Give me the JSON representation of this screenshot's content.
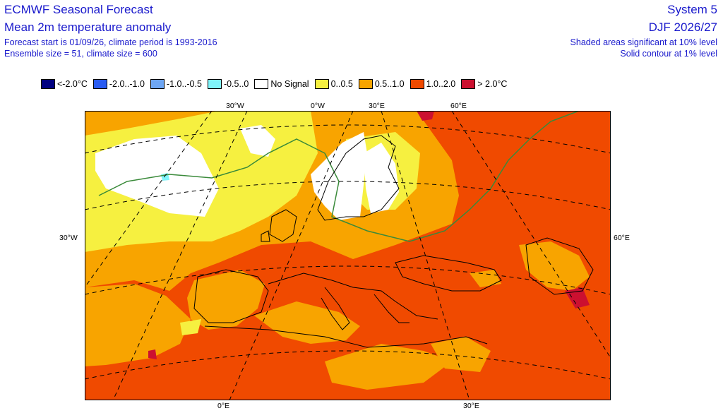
{
  "header": {
    "title_left": "ECMWF Seasonal Forecast",
    "subtitle_left": "Mean 2m temperature anomaly",
    "info_line1": "Forecast start is 01/09/26, climate period is 1993-2016",
    "info_line2": "Ensemble size = 51, climate size = 600",
    "title_right": "System 5",
    "subtitle_right": "DJF 2026/27",
    "significance_line1": "Shaded areas significant at 10% level",
    "significance_line2": "Solid contour at 1% level"
  },
  "legend": [
    {
      "label": "<-2.0°C",
      "color": "#000080"
    },
    {
      "label": "-2.0..-1.0",
      "color": "#2a5cf2"
    },
    {
      "label": "-1.0..-0.5",
      "color": "#6ea6f4"
    },
    {
      "label": "-0.5..0",
      "color": "#7ff4fa"
    },
    {
      "label": "No Signal",
      "color": "#ffffff"
    },
    {
      "label": "0..0.5",
      "color": "#f6f040"
    },
    {
      "label": "0.5..1.0",
      "color": "#f8a400"
    },
    {
      "label": "1.0..2.0",
      "color": "#f04a00"
    },
    {
      "label": "> 2.0°C",
      "color": "#cc1030"
    }
  ],
  "map": {
    "grid_labels_top": [
      "30°W",
      "0°W",
      "30°E",
      "60°E"
    ],
    "grid_label_left": "30°W",
    "grid_label_right": "60°E",
    "grid_labels_bottom": [
      "0°E",
      "30°E"
    ],
    "colors": {
      "ocean_base": "#f04a00",
      "warm": "#f8a400",
      "mild": "#f6f040",
      "no_signal": "#ffffff",
      "hot": "#cc1030",
      "cool": "#7ff4fa",
      "coast": "#000000",
      "grid": "#000000",
      "sig_contour": "#3a8a3a"
    }
  }
}
